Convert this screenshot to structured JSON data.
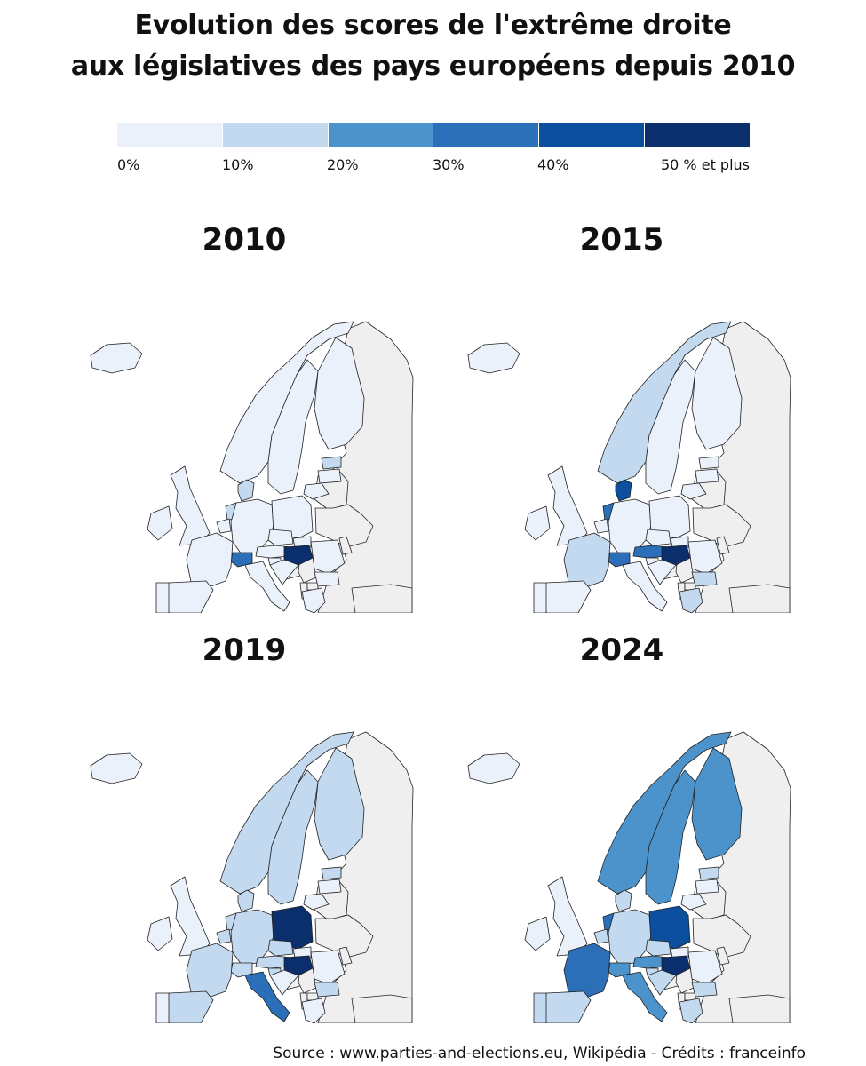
{
  "title": {
    "line1": "Evolution des scores de l'extrême droite",
    "line2": "aux législatives des pays européens depuis 2010"
  },
  "legend": {
    "labels": [
      "0%",
      "10%",
      "20%",
      "30%",
      "40%",
      "50 % et plus"
    ],
    "colors": [
      "#eaf1fb",
      "#c3d9f0",
      "#4c93cb",
      "#2a6fb7",
      "#0c4f9e",
      "#0b2e6c"
    ]
  },
  "colors": {
    "no_data": "#efefef",
    "border": "#222222"
  },
  "maps": [
    {
      "year": "2010",
      "class": {
        "IS": 0,
        "NO": 0,
        "SE": 0,
        "FI": 0,
        "DK": 1,
        "IE": 0,
        "GB": 0,
        "NL": 1,
        "BE": 0,
        "DE": 0,
        "PL": 0,
        "FR": 0,
        "CH": 3,
        "AT": 0,
        "CZ": 0,
        "HU": 5,
        "SK": 0,
        "SI": 0,
        "HR": 0,
        "IT": 0,
        "ES": 0,
        "PT": 0,
        "GR": 0,
        "BG": 0,
        "RO": 0,
        "EE": 1,
        "LV": 0,
        "LT": 0
      }
    },
    {
      "year": "2015",
      "class": {
        "IS": 0,
        "NO": 1,
        "SE": 0,
        "FI": 0,
        "DK": 4,
        "IE": 0,
        "GB": 0,
        "NL": 3,
        "BE": 0,
        "DE": 0,
        "PL": 0,
        "FR": 1,
        "CH": 3,
        "AT": 3,
        "CZ": 0,
        "HU": 5,
        "SK": 0,
        "SI": 0,
        "HR": 0,
        "IT": 0,
        "ES": 0,
        "PT": 0,
        "GR": 1,
        "BG": 1,
        "RO": 0,
        "EE": 0,
        "LV": 0,
        "LT": 0
      }
    },
    {
      "year": "2019",
      "class": {
        "IS": 0,
        "NO": 1,
        "SE": 1,
        "FI": 1,
        "DK": 1,
        "IE": 0,
        "GB": 0,
        "NL": 1,
        "BE": 1,
        "DE": 1,
        "PL": 5,
        "FR": 1,
        "CH": 1,
        "AT": 1,
        "CZ": 1,
        "HU": 5,
        "SK": 0,
        "SI": 1,
        "HR": 0,
        "IT": 3,
        "ES": 1,
        "PT": 0,
        "GR": 0,
        "BG": 1,
        "RO": 0,
        "EE": 1,
        "LV": 0,
        "LT": 0
      }
    },
    {
      "year": "2024",
      "class": {
        "IS": 0,
        "NO": 2,
        "SE": 2,
        "FI": 2,
        "DK": 1,
        "IE": 0,
        "GB": 0,
        "NL": 3,
        "BE": 1,
        "DE": 1,
        "PL": 4,
        "FR": 3,
        "CH": 2,
        "AT": 2,
        "CZ": 1,
        "HU": 5,
        "SK": 0,
        "SI": 1,
        "HR": 1,
        "IT": 2,
        "ES": 1,
        "PT": 1,
        "GR": 1,
        "BG": 1,
        "RO": 0,
        "EE": 1,
        "LV": 0,
        "LT": 0
      }
    }
  ],
  "source": "Source : www.parties-and-elections.eu, Wikipédia - Crédits : franceinfo"
}
